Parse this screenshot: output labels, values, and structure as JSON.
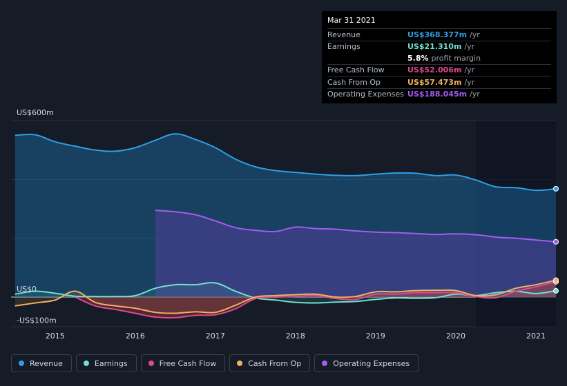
{
  "tooltip": {
    "date": "Mar 31 2021",
    "rows": [
      {
        "label": "Revenue",
        "value": "US$368.377m",
        "unit": "/yr",
        "color": "#2f9ee6"
      },
      {
        "label": "Earnings",
        "value": "US$21.310m",
        "unit": "/yr",
        "color": "#6fe0d0"
      },
      {
        "label": "",
        "value": "5.8%",
        "unit": "profit margin",
        "color": "#ffffff"
      },
      {
        "label": "Free Cash Flow",
        "value": "US$52.006m",
        "unit": "/yr",
        "color": "#e0498c"
      },
      {
        "label": "Cash From Op",
        "value": "US$57.473m",
        "unit": "/yr",
        "color": "#f0b25e"
      },
      {
        "label": "Operating Expenses",
        "value": "US$188.045m",
        "unit": "/yr",
        "color": "#a55bf0"
      }
    ]
  },
  "legend": [
    {
      "label": "Revenue",
      "color": "#2f9ee6"
    },
    {
      "label": "Earnings",
      "color": "#6fe0d0"
    },
    {
      "label": "Free Cash Flow",
      "color": "#e0498c"
    },
    {
      "label": "Cash From Op",
      "color": "#f0b25e"
    },
    {
      "label": "Operating Expenses",
      "color": "#a55bf0"
    }
  ],
  "chart_data": {
    "type": "area",
    "title": "",
    "xlabel": "",
    "ylabel": "",
    "y_axis_labels": [
      "US$600m",
      "US$0",
      "-US$100m"
    ],
    "ylim": [
      -100,
      600
    ],
    "xlim": [
      2014.45,
      2021.25
    ],
    "x_ticks": [
      2015,
      2016,
      2017,
      2018,
      2019,
      2020,
      2021
    ],
    "x_tick_labels": [
      "2015",
      "2016",
      "2017",
      "2018",
      "2019",
      "2020",
      "2021"
    ],
    "forecast_shade_start": 2020.25,
    "series": [
      {
        "name": "Revenue",
        "color": "#2f9ee6",
        "points": [
          [
            2014.5,
            550
          ],
          [
            2014.75,
            552
          ],
          [
            2015.0,
            528
          ],
          [
            2015.25,
            513
          ],
          [
            2015.5,
            500
          ],
          [
            2015.75,
            496
          ],
          [
            2016.0,
            508
          ],
          [
            2016.25,
            533
          ],
          [
            2016.5,
            555
          ],
          [
            2016.75,
            536
          ],
          [
            2017.0,
            508
          ],
          [
            2017.25,
            469
          ],
          [
            2017.5,
            443
          ],
          [
            2017.75,
            430
          ],
          [
            2018.0,
            424
          ],
          [
            2018.25,
            418
          ],
          [
            2018.5,
            414
          ],
          [
            2018.75,
            413
          ],
          [
            2019.0,
            418
          ],
          [
            2019.25,
            422
          ],
          [
            2019.5,
            421
          ],
          [
            2019.75,
            413
          ],
          [
            2020.0,
            415
          ],
          [
            2020.25,
            398
          ],
          [
            2020.5,
            375
          ],
          [
            2020.75,
            372
          ],
          [
            2021.0,
            363
          ],
          [
            2021.25,
            368.4
          ]
        ]
      },
      {
        "name": "Operating Expenses",
        "color": "#a55bf0",
        "points": [
          [
            2016.25,
            295
          ],
          [
            2016.5,
            290
          ],
          [
            2016.75,
            280
          ],
          [
            2017.0,
            259
          ],
          [
            2017.25,
            236
          ],
          [
            2017.5,
            227
          ],
          [
            2017.75,
            223
          ],
          [
            2018.0,
            238
          ],
          [
            2018.25,
            233
          ],
          [
            2018.5,
            231
          ],
          [
            2018.75,
            225
          ],
          [
            2019.0,
            221
          ],
          [
            2019.25,
            219
          ],
          [
            2019.5,
            216
          ],
          [
            2019.75,
            213
          ],
          [
            2020.0,
            215
          ],
          [
            2020.25,
            212
          ],
          [
            2020.5,
            204
          ],
          [
            2020.75,
            200
          ],
          [
            2021.0,
            194
          ],
          [
            2021.25,
            188
          ]
        ]
      },
      {
        "name": "Earnings",
        "color": "#6fe0d0",
        "points": [
          [
            2014.5,
            10
          ],
          [
            2014.75,
            20
          ],
          [
            2015.0,
            13
          ],
          [
            2015.25,
            3
          ],
          [
            2015.5,
            2
          ],
          [
            2015.75,
            2
          ],
          [
            2016.0,
            5
          ],
          [
            2016.25,
            30
          ],
          [
            2016.5,
            42
          ],
          [
            2016.75,
            42
          ],
          [
            2017.0,
            48
          ],
          [
            2017.25,
            20
          ],
          [
            2017.5,
            -3
          ],
          [
            2017.75,
            -10
          ],
          [
            2018.0,
            -18
          ],
          [
            2018.25,
            -20
          ],
          [
            2018.5,
            -17
          ],
          [
            2018.75,
            -15
          ],
          [
            2019.0,
            -8
          ],
          [
            2019.25,
            -3
          ],
          [
            2019.5,
            -4
          ],
          [
            2019.75,
            -2
          ],
          [
            2020.0,
            10
          ],
          [
            2020.25,
            5
          ],
          [
            2020.5,
            15
          ],
          [
            2020.75,
            20
          ],
          [
            2021.0,
            12
          ],
          [
            2021.25,
            21.3
          ]
        ]
      },
      {
        "name": "Free Cash Flow",
        "color": "#e0498c",
        "points": [
          [
            2015.25,
            0
          ],
          [
            2015.5,
            -30
          ],
          [
            2015.75,
            -42
          ],
          [
            2016.0,
            -55
          ],
          [
            2016.25,
            -68
          ],
          [
            2016.5,
            -70
          ],
          [
            2016.75,
            -62
          ],
          [
            2017.0,
            -60
          ],
          [
            2017.25,
            -40
          ],
          [
            2017.5,
            -5
          ],
          [
            2017.75,
            0
          ],
          [
            2018.0,
            2
          ],
          [
            2018.25,
            5
          ],
          [
            2018.5,
            -5
          ],
          [
            2018.75,
            -8
          ],
          [
            2019.0,
            10
          ],
          [
            2019.25,
            10
          ],
          [
            2019.5,
            15
          ],
          [
            2019.75,
            15
          ],
          [
            2020.0,
            15
          ],
          [
            2020.25,
            2
          ],
          [
            2020.5,
            -2
          ],
          [
            2020.75,
            20
          ],
          [
            2021.0,
            35
          ],
          [
            2021.25,
            52
          ]
        ]
      },
      {
        "name": "Cash From Op",
        "color": "#f0b25e",
        "points": [
          [
            2014.5,
            -30
          ],
          [
            2014.75,
            -20
          ],
          [
            2015.0,
            -10
          ],
          [
            2015.25,
            20
          ],
          [
            2015.5,
            -18
          ],
          [
            2015.75,
            -30
          ],
          [
            2016.0,
            -38
          ],
          [
            2016.25,
            -52
          ],
          [
            2016.5,
            -55
          ],
          [
            2016.75,
            -50
          ],
          [
            2017.0,
            -52
          ],
          [
            2017.25,
            -28
          ],
          [
            2017.5,
            0
          ],
          [
            2017.75,
            5
          ],
          [
            2018.0,
            8
          ],
          [
            2018.25,
            10
          ],
          [
            2018.5,
            0
          ],
          [
            2018.75,
            2
          ],
          [
            2019.0,
            18
          ],
          [
            2019.25,
            18
          ],
          [
            2019.5,
            22
          ],
          [
            2019.75,
            23
          ],
          [
            2020.0,
            22
          ],
          [
            2020.25,
            5
          ],
          [
            2020.5,
            8
          ],
          [
            2020.75,
            30
          ],
          [
            2021.0,
            42
          ],
          [
            2021.25,
            57.5
          ]
        ]
      }
    ]
  }
}
